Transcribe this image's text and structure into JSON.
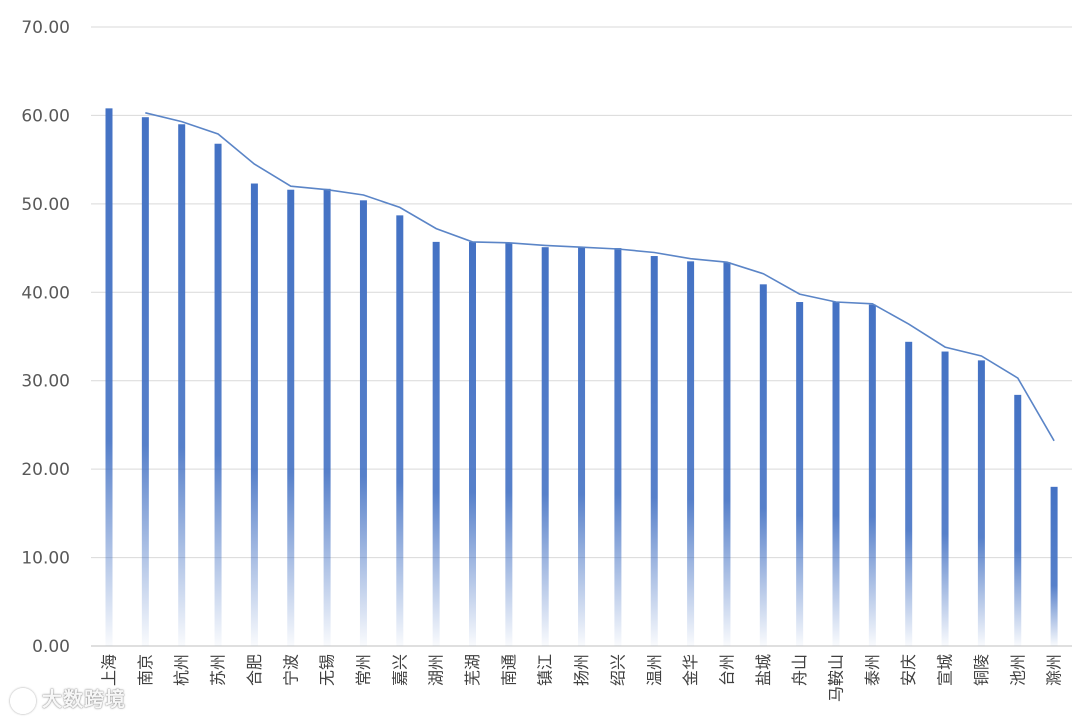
{
  "chart_data": {
    "type": "bar",
    "categories": [
      "上海",
      "南京",
      "杭州",
      "苏州",
      "合肥",
      "宁波",
      "无锡",
      "常州",
      "嘉兴",
      "湖州",
      "芜湖",
      "南通",
      "镇江",
      "扬州",
      "绍兴",
      "温州",
      "金华",
      "台州",
      "盐城",
      "舟山",
      "马鞍山",
      "泰州",
      "安庆",
      "宣城",
      "铜陵",
      "池州",
      "滁州"
    ],
    "series": [
      {
        "type": "bar",
        "values": [
          60.8,
          59.8,
          59.0,
          56.8,
          52.3,
          51.6,
          51.7,
          50.4,
          48.7,
          45.7,
          45.7,
          45.6,
          45.1,
          45.1,
          45.0,
          44.1,
          43.5,
          43.4,
          40.9,
          38.9,
          38.9,
          38.6,
          34.4,
          33.3,
          32.3,
          28.4,
          18.0
        ]
      },
      {
        "type": "line",
        "values": [
          null,
          60.3,
          59.3,
          57.9,
          54.5,
          52.0,
          51.6,
          51.0,
          49.6,
          47.2,
          45.7,
          45.6,
          45.3,
          45.1,
          44.9,
          44.5,
          43.8,
          43.4,
          42.1,
          39.8,
          38.9,
          38.7,
          36.4,
          33.8,
          32.8,
          30.3,
          23.2
        ]
      }
    ],
    "y_ticks": [
      "0.00",
      "10.00",
      "20.00",
      "30.00",
      "40.00",
      "50.00",
      "60.00",
      "70.00"
    ],
    "ylim": [
      0,
      70
    ],
    "grid": true,
    "colors": {
      "bar": "#4472C4",
      "line": "#5B85C7",
      "grid": "#D9D9D9"
    }
  },
  "watermark": "大数跨境"
}
